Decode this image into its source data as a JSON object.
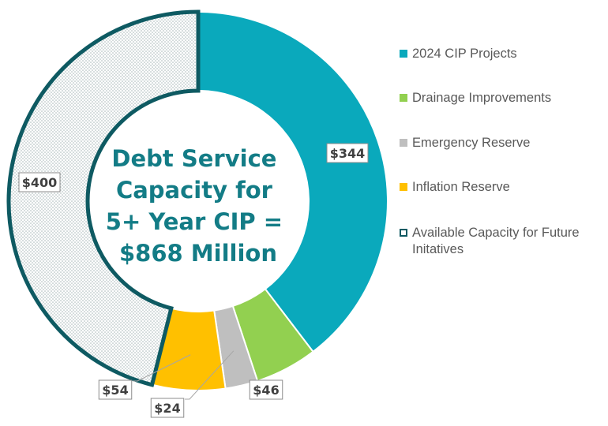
{
  "chart_data": {
    "type": "pie",
    "variant": "donut",
    "center_text": [
      "Debt Service",
      "Capacity for",
      "5+ Year CIP =",
      "$868 Million"
    ],
    "total": 868,
    "slices": [
      {
        "name": "2024 CIP Projects",
        "value": 344,
        "label": "$344",
        "color": "#0aa9bc",
        "style": "solid"
      },
      {
        "name": "Drainage Improvements",
        "value": 46,
        "label": "$46",
        "color": "#92d050",
        "style": "solid"
      },
      {
        "name": "Emergency Reserve",
        "value": 24,
        "label": "$24",
        "color": "#bfbfbf",
        "style": "solid"
      },
      {
        "name": "Inflation Reserve",
        "value": 54,
        "label": "$54",
        "color": "#ffc000",
        "style": "solid"
      },
      {
        "name": "Available Capacity for Future Initatives",
        "value": 400,
        "label": "$400",
        "color": "#0e5a62",
        "style": "dotted-outline"
      }
    ],
    "legend_position": "right"
  }
}
